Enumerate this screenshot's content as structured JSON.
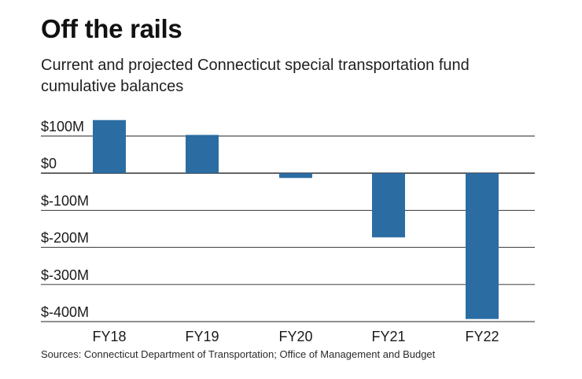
{
  "header": {
    "title": "Off the rails",
    "subtitle": "Current and projected Connecticut special transportation fund cumulative balances"
  },
  "footer": {
    "source": "Sources: Connecticut Department of Transportation; Office of Management and Budget"
  },
  "colors": {
    "bar": "#2b6da3",
    "gridline": "#222222"
  },
  "chart_data": {
    "type": "bar",
    "title": "Off the rails",
    "subtitle": "Current and projected Connecticut special transportation fund cumulative balances",
    "categories": [
      "FY18",
      "FY19",
      "FY20",
      "FY21",
      "FY22"
    ],
    "values": [
      143,
      103,
      -13,
      -173,
      -393
    ],
    "unit": "$ millions",
    "xlabel": "",
    "ylabel": "",
    "ylim": [
      -400,
      100
    ],
    "yticks": [
      100,
      0,
      -100,
      -200,
      -300,
      -400
    ],
    "ytick_labels": [
      "$100M",
      "$0",
      "$-100M",
      "$-200M",
      "$-300M",
      "$-400M"
    ],
    "grid": true,
    "legend": "none"
  }
}
